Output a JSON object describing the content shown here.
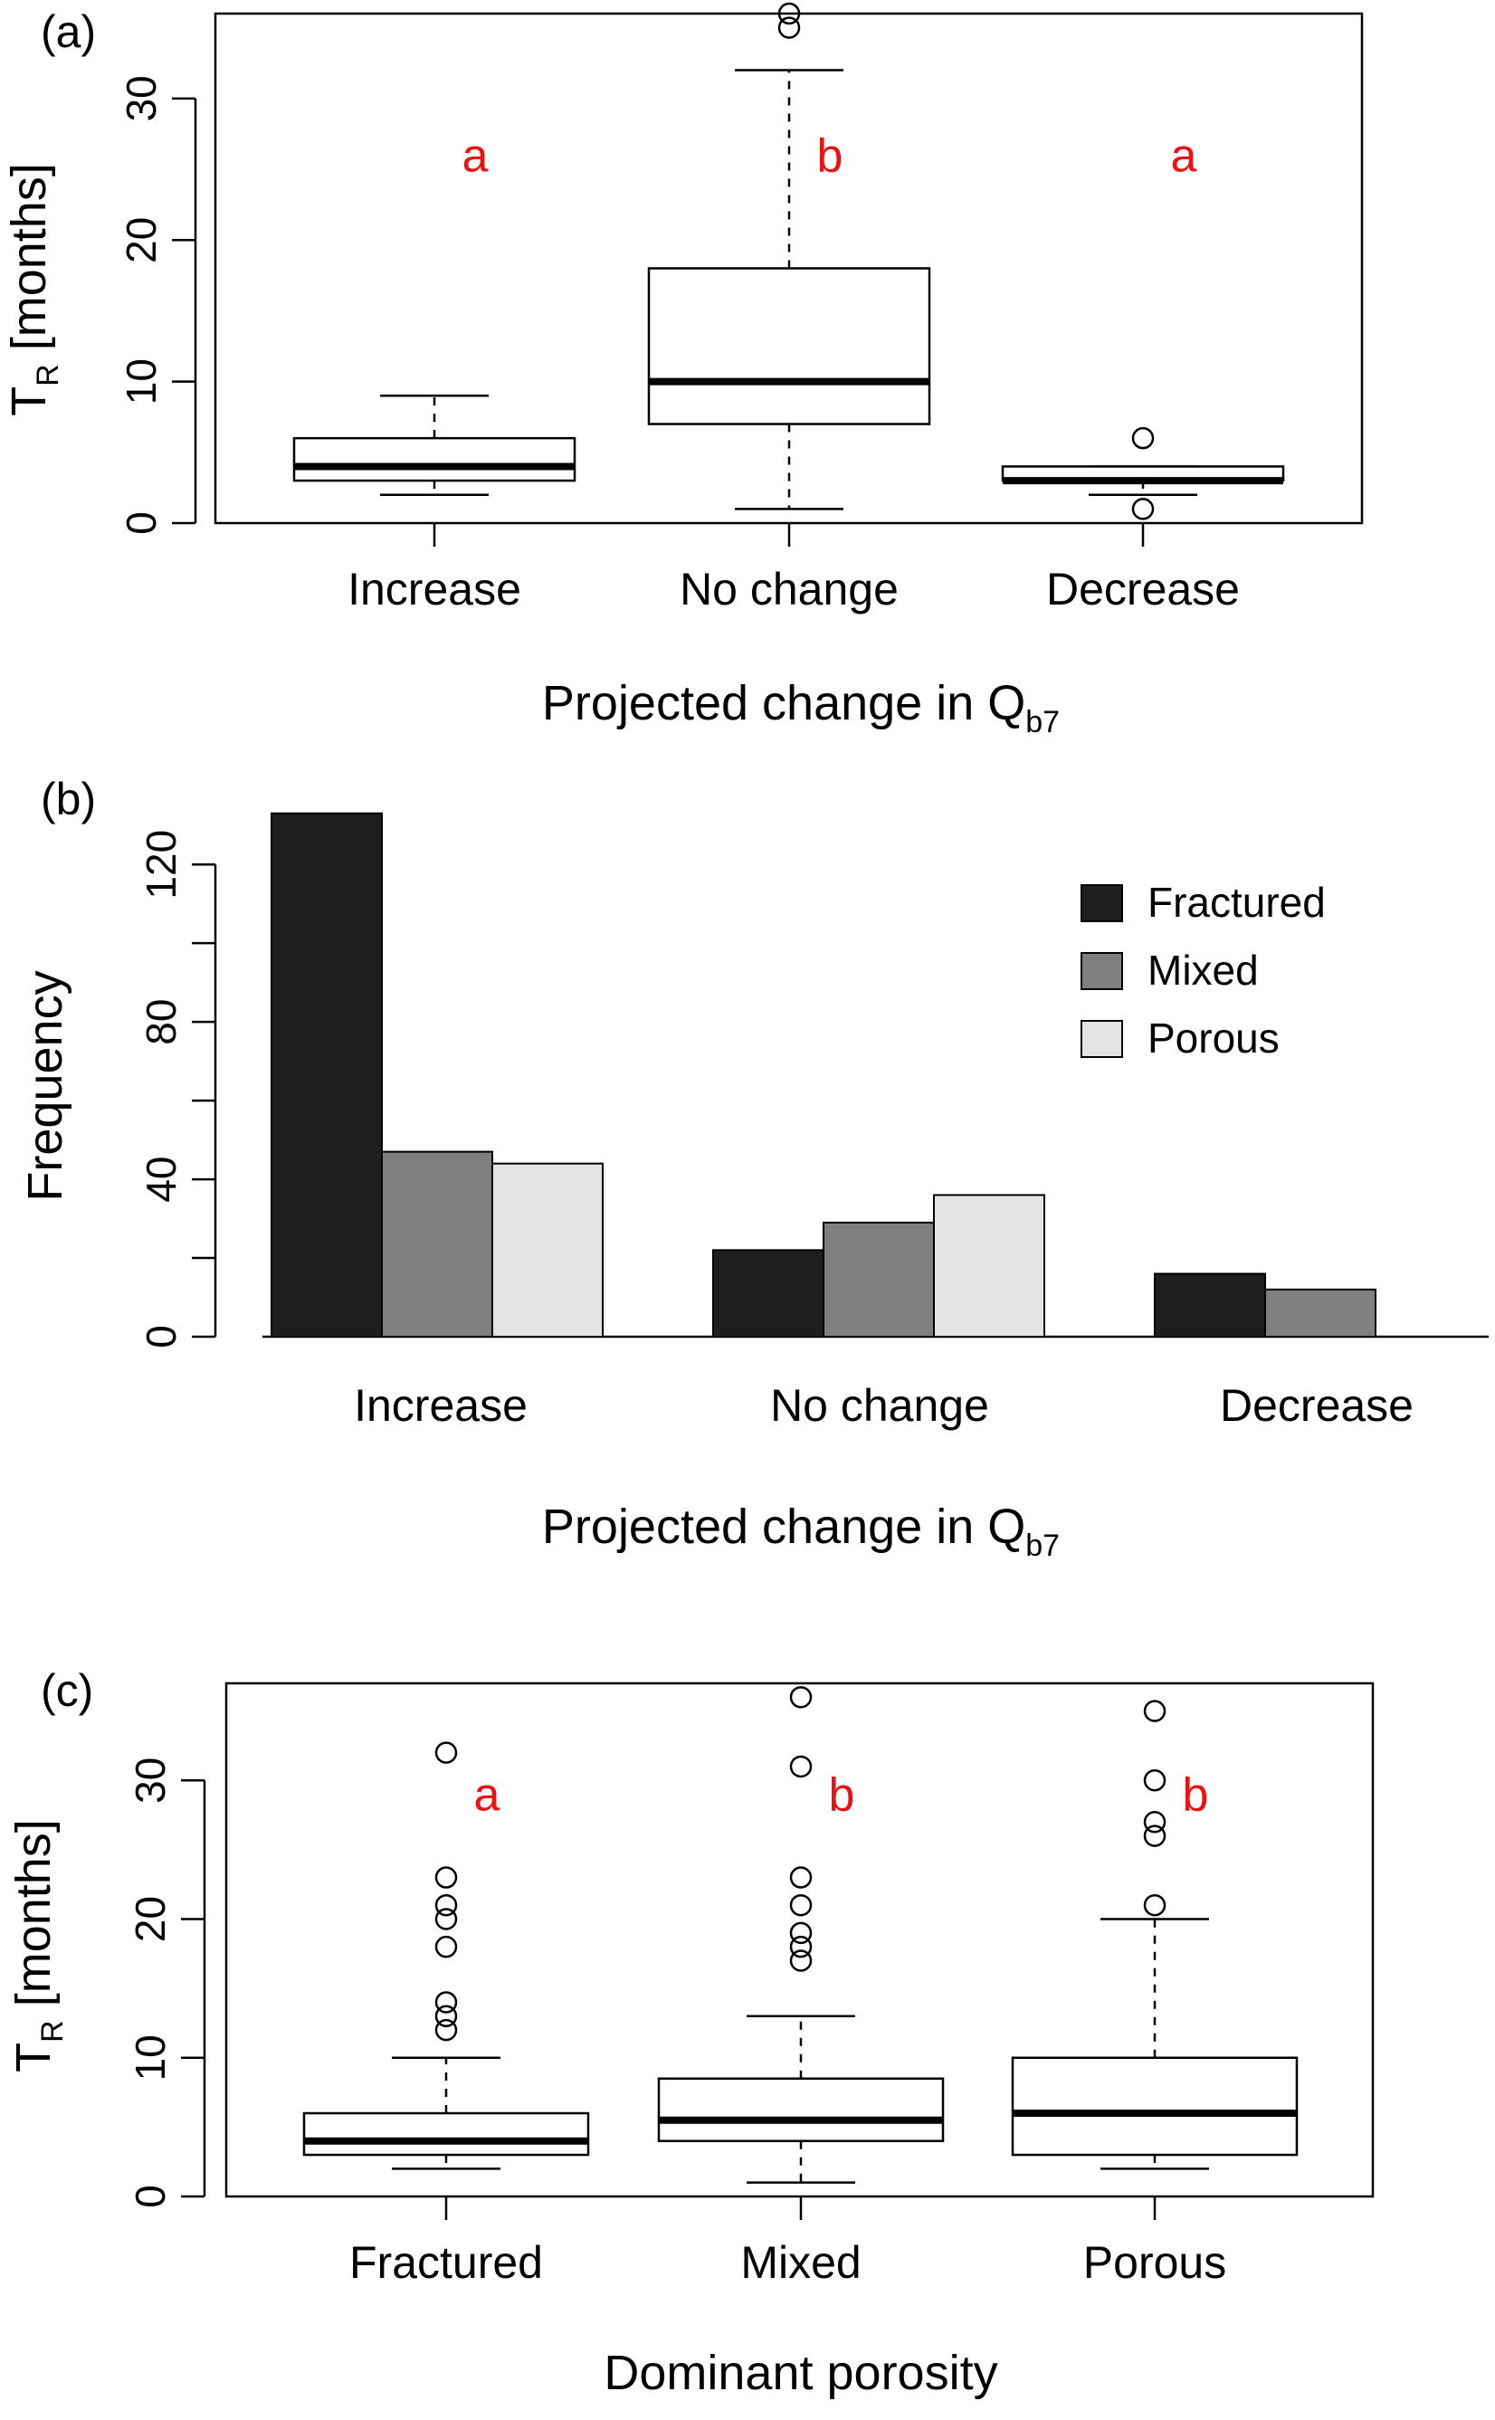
{
  "chart_data": [
    {
      "panel": "(a)",
      "type": "box",
      "ylabel": "T",
      "ylabel_sub": "R",
      "ylabel_unit": "[months]",
      "xlabel": "Projected change in Q",
      "xlabel_sub": "b7",
      "ylim": [
        0,
        36
      ],
      "yticks": [
        0,
        10,
        20,
        30
      ],
      "categories": [
        "Increase",
        "No change",
        "Decrease"
      ],
      "boxes": [
        {
          "whisker_low": 2,
          "q1": 3,
          "median": 4,
          "q3": 6,
          "whisker_high": 9,
          "outliers": []
        },
        {
          "whisker_low": 1,
          "q1": 7,
          "median": 10,
          "q3": 18,
          "whisker_high": 32,
          "outliers": [
            35,
            36
          ]
        },
        {
          "whisker_low": 2,
          "q1": 3,
          "median": 3,
          "q3": 4,
          "whisker_high": 4,
          "outliers": [
            6,
            1
          ]
        }
      ],
      "annotations": [
        "a",
        "b",
        "a"
      ],
      "annotation_y": 26,
      "annotation_color": "#ee1111"
    },
    {
      "panel": "(b)",
      "type": "bar",
      "ylabel": "Frequency",
      "xlabel": "Projected change in Q",
      "xlabel_sub": "b7",
      "ylim": [
        0,
        135
      ],
      "yticks": [
        0,
        40,
        80,
        120
      ],
      "categories": [
        "Increase",
        "No change",
        "Decrease"
      ],
      "legend_position": "top-right",
      "series": [
        {
          "name": "Fractured",
          "color": "#1e1e1e",
          "values": [
            133,
            22,
            16
          ]
        },
        {
          "name": "Mixed",
          "color": "#7f7f7f",
          "values": [
            47,
            29,
            12
          ]
        },
        {
          "name": "Porous",
          "color": "#e3e3e3",
          "values": [
            44,
            36,
            0
          ]
        }
      ]
    },
    {
      "panel": "(c)",
      "type": "box",
      "ylabel": "T",
      "ylabel_sub": "R",
      "ylabel_unit": "[months]",
      "xlabel": "Dominant porosity",
      "ylim": [
        0,
        37
      ],
      "yticks": [
        0,
        10,
        20,
        30
      ],
      "categories": [
        "Fractured",
        "Mixed",
        "Porous"
      ],
      "boxes": [
        {
          "whisker_low": 2,
          "q1": 3,
          "median": 4,
          "q3": 6,
          "whisker_high": 10,
          "outliers": [
            12,
            13,
            14,
            18,
            20,
            21,
            23,
            32
          ]
        },
        {
          "whisker_low": 1,
          "q1": 4,
          "median": 5.5,
          "q3": 8.5,
          "whisker_high": 13,
          "outliers": [
            17,
            18,
            19,
            21,
            23,
            31,
            36
          ]
        },
        {
          "whisker_low": 2,
          "q1": 3,
          "median": 6,
          "q3": 10,
          "whisker_high": 20,
          "outliers": [
            21,
            26,
            27,
            30,
            35
          ]
        }
      ],
      "annotations": [
        "a",
        "b",
        "b"
      ],
      "annotation_y": 29,
      "annotation_color": "#ee1111"
    }
  ]
}
